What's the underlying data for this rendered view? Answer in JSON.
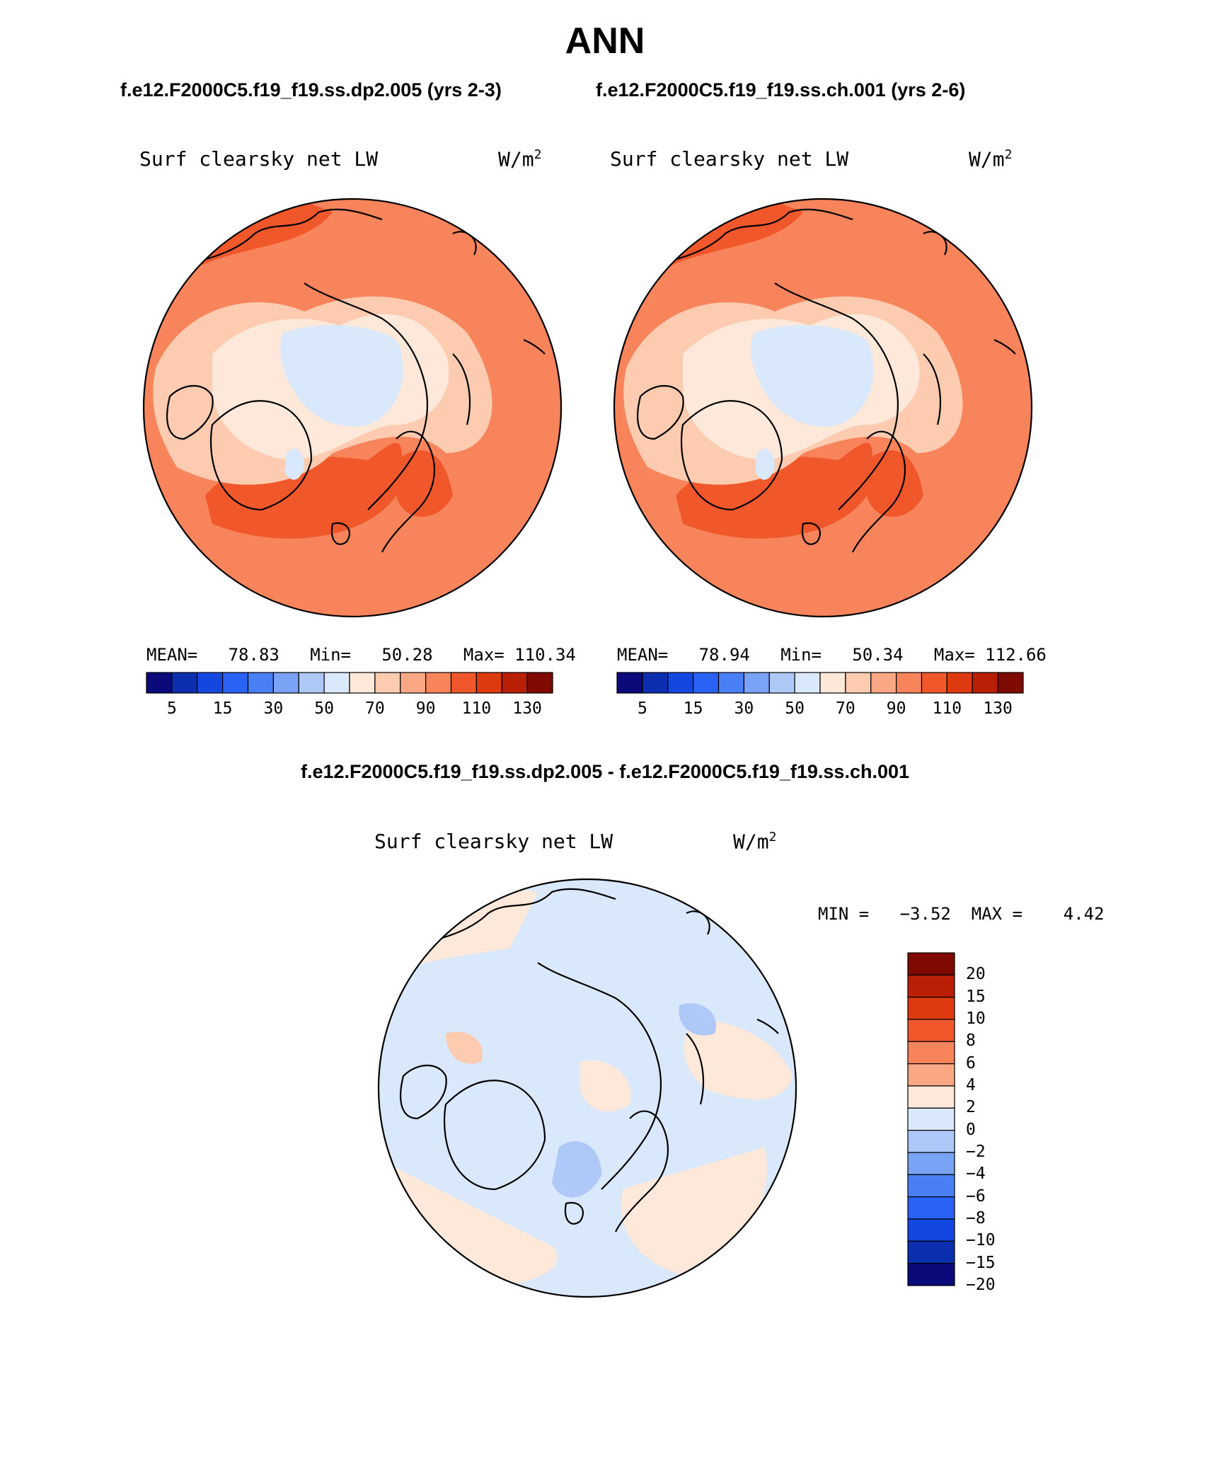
{
  "title": "ANN",
  "top": {
    "left_case": "f.e12.F2000C5.f19_f19.ss.dp2.005 (yrs 2-3)",
    "right_case": "f.e12.F2000C5.f19_f19.ss.ch.001 (yrs 2-6)"
  },
  "diff_title": "f.e12.F2000C5.f19_f19.ss.dp2.005 - f.e12.F2000C5.f19_f19.ss.ch.001",
  "panels": {
    "left": {
      "variable": "Surf clearsky net LW",
      "unit_base": "W/m",
      "unit_exp": "2",
      "stats": "MEAN=   78.83   Min=   50.28   Max= 110.34"
    },
    "right": {
      "variable": "Surf clearsky net LW",
      "unit_base": "W/m",
      "unit_exp": "2",
      "stats": "MEAN=   78.94   Min=   50.34   Max= 112.66"
    },
    "diff": {
      "variable": "Surf clearsky net LW",
      "unit_base": "W/m",
      "unit_exp": "2",
      "stats": "MIN =   −3.52  MAX =    4.42"
    }
  },
  "colorbar_main": {
    "colors": [
      "#0a0a7a",
      "#0c2fb0",
      "#1347e0",
      "#2962f5",
      "#4a80f5",
      "#7ba3f5",
      "#aec8f7",
      "#d9e8fb",
      "#fde8d9",
      "#fccbb0",
      "#faa884",
      "#f7845a",
      "#f0582b",
      "#dd3a10",
      "#b81f04",
      "#7e0a02"
    ],
    "ticks": [
      "5",
      "15",
      "30",
      "50",
      "70",
      "90",
      "110",
      "130"
    ]
  },
  "colorbar_diff": {
    "colors": [
      "#7e0a02",
      "#b81f04",
      "#dd3a10",
      "#f0582b",
      "#f7845a",
      "#faa884",
      "#fde8d9",
      "#d9e8fb",
      "#aec8f7",
      "#7ba3f5",
      "#4a80f5",
      "#2962f5",
      "#1347e0",
      "#0c2fb0",
      "#0a0a7a"
    ],
    "ticks": [
      "20",
      "15",
      "10",
      "8",
      "6",
      "4",
      "2",
      "0",
      "−2",
      "−4",
      "−6",
      "−8",
      "−10",
      "−15",
      "−20"
    ]
  },
  "map_colors": {
    "land_outline": "#000000",
    "main_base": "#f7845a",
    "main_light": "#fccbb0",
    "main_pale": "#fde8d9",
    "main_cold": "#d9e8fb",
    "main_hot": "#f0582b",
    "diff_pos": "#fde8d9",
    "diff_neg": "#d9e8fb",
    "diff_neg2": "#aec8f7",
    "diff_pos2": "#fccbb0"
  }
}
